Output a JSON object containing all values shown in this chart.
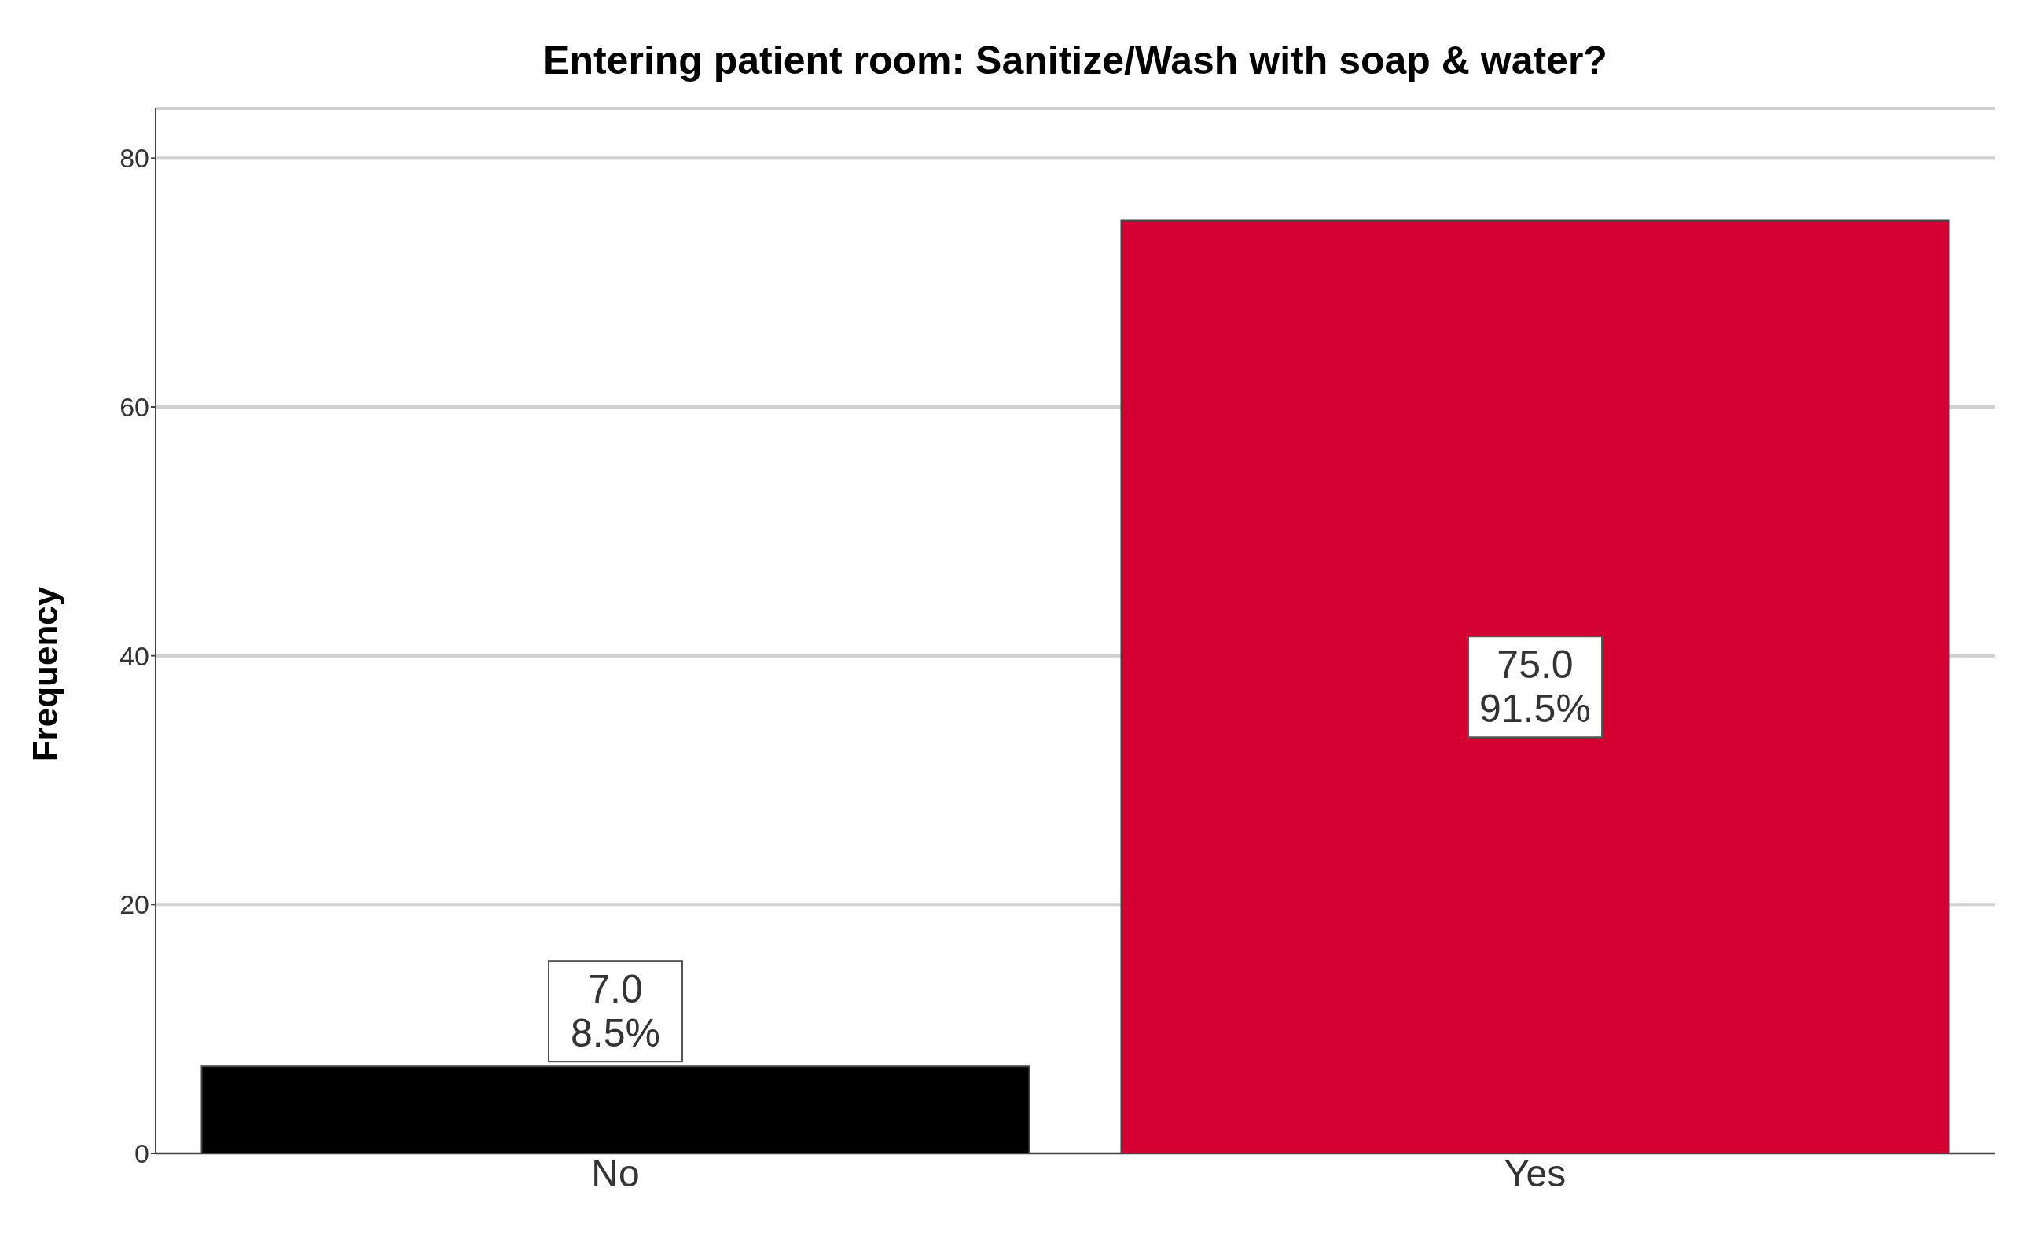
{
  "chart_data": {
    "type": "bar",
    "title": "Entering patient room: Sanitize/Wash with soap & water?",
    "ylabel": "Frequency",
    "categories": [
      "No",
      "Yes"
    ],
    "values": [
      7,
      75
    ],
    "colors": [
      "#000000",
      "#d50032"
    ],
    "value_labels": [
      "7.0\n8.5%",
      "75.0\n91.5%"
    ],
    "ylim": [
      0,
      84
    ],
    "yticks": [
      0,
      20,
      40,
      60,
      80
    ],
    "grid": "y"
  }
}
